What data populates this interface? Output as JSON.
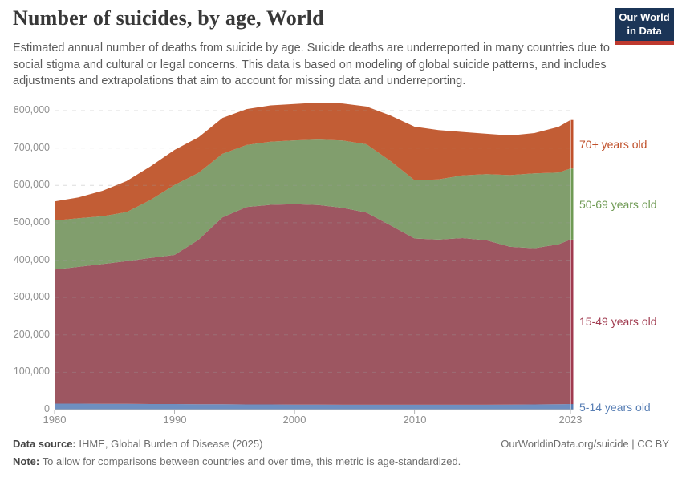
{
  "header": {
    "title": "Number of suicides, by age, World",
    "subtitle": "Estimated annual number of deaths from suicide by age. Suicide deaths are underreported in many countries due to social stigma and cultural or legal concerns. This data is based on modeling of global suicide patterns, and includes adjustments and extrapolations that aim to account for missing data and underreporting.",
    "logo_line1": "Our World",
    "logo_line2": "in Data"
  },
  "chart_data": {
    "type": "area",
    "stacked": true,
    "title": "Number of suicides, by age, World",
    "xlabel": "",
    "ylabel": "",
    "xlim": [
      1980,
      2023
    ],
    "ylim": [
      0,
      800000
    ],
    "grid": "dashed horizontal",
    "legend_position": "right, aligned to final band midpoints",
    "x": [
      1980,
      1982,
      1984,
      1986,
      1988,
      1990,
      1992,
      1994,
      1996,
      1998,
      2000,
      2002,
      2004,
      2006,
      2008,
      2010,
      2012,
      2014,
      2016,
      2018,
      2020,
      2022,
      2023
    ],
    "series": [
      {
        "id": "5-14",
        "label": "5-14 years old",
        "color": "#577EB4",
        "fill": "#6E8FC0",
        "values": [
          16000,
          16000,
          15500,
          15500,
          15000,
          15000,
          14500,
          14500,
          14000,
          14000,
          13500,
          13500,
          13000,
          13000,
          13000,
          13000,
          13000,
          13000,
          13000,
          13500,
          14000,
          14500,
          15000
        ]
      },
      {
        "id": "15-49",
        "label": "15-49 years old",
        "color": "#A03A4F",
        "fill": "#9D5661",
        "values": [
          359000,
          366000,
          374000,
          382000,
          391000,
          399000,
          440000,
          500000,
          528000,
          534000,
          536000,
          534000,
          527000,
          514000,
          480000,
          445000,
          442000,
          446000,
          440000,
          422000,
          418000,
          428000,
          440000
        ]
      },
      {
        "id": "50-69",
        "label": "50-69 years old",
        "color": "#6F9A54",
        "fill": "#819E6D",
        "values": [
          131000,
          130000,
          128000,
          131000,
          155000,
          187000,
          179000,
          170000,
          166000,
          169000,
          171000,
          175000,
          180000,
          183000,
          172000,
          156000,
          161000,
          168000,
          177000,
          192000,
          200000,
          192000,
          190000
        ]
      },
      {
        "id": "70plus",
        "label": "70+ years old",
        "color": "#C0512B",
        "fill": "#C25D35",
        "values": [
          51000,
          56000,
          68000,
          83000,
          90000,
          94000,
          95000,
          96000,
          96000,
          97000,
          97000,
          99000,
          99000,
          101000,
          122000,
          143000,
          132000,
          116000,
          108000,
          106000,
          108000,
          122000,
          130000
        ]
      }
    ],
    "y_ticks": [
      {
        "value": 0,
        "label": "0"
      },
      {
        "value": 100000,
        "label": "100,000"
      },
      {
        "value": 200000,
        "label": "200,000"
      },
      {
        "value": 300000,
        "label": "300,000"
      },
      {
        "value": 400000,
        "label": "400,000"
      },
      {
        "value": 500000,
        "label": "500,000"
      },
      {
        "value": 600000,
        "label": "600,000"
      },
      {
        "value": 700000,
        "label": "700,000"
      },
      {
        "value": 800000,
        "label": "800,000"
      }
    ],
    "x_ticks": [
      {
        "year": 1980,
        "label": "1980"
      },
      {
        "year": 1990,
        "label": "1990"
      },
      {
        "year": 2000,
        "label": "2000"
      },
      {
        "year": 2010,
        "label": "2010"
      },
      {
        "year": 2023,
        "label": "2023"
      }
    ]
  },
  "footer": {
    "source_label": "Data source:",
    "source_value": "IHME, Global Burden of Disease (2025)",
    "note_label": "Note:",
    "note_value": "To allow for comparisons between countries and over time, this metric is age-standardized.",
    "link": "OurWorldinData.org/suicide | CC BY"
  }
}
